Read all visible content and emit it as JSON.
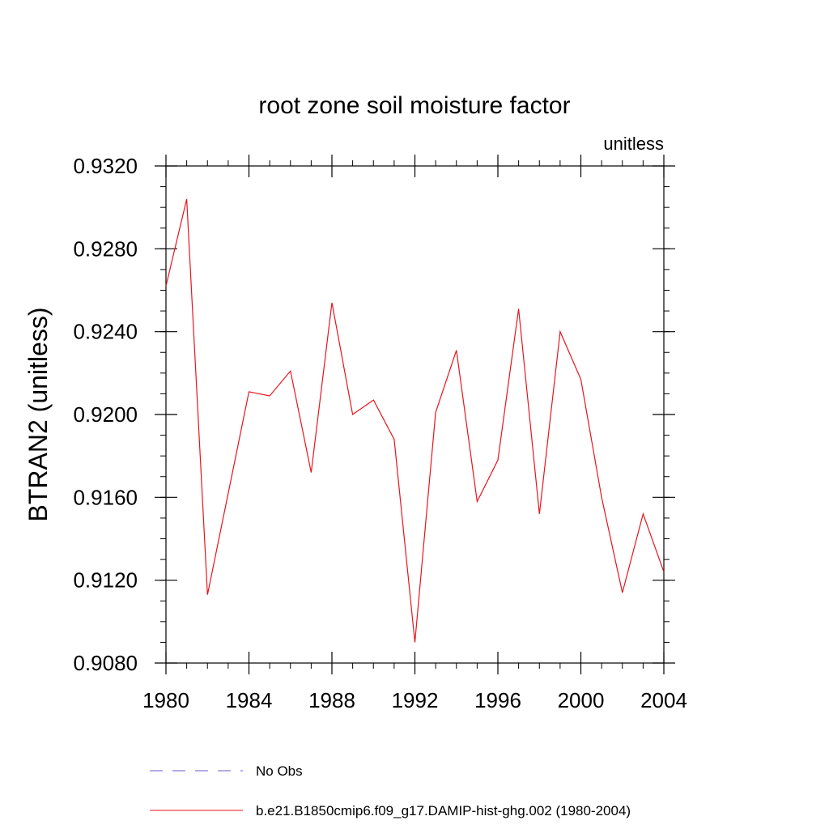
{
  "chart_data": {
    "type": "line",
    "title": "root zone soil moisture factor",
    "units_label": "unitless",
    "ylabel": "BTRAN2  (unitless)",
    "xlabel": "",
    "xlim": [
      1980,
      2004
    ],
    "ylim": [
      0.908,
      0.932
    ],
    "x_ticks": [
      1980,
      1984,
      1988,
      1992,
      1996,
      2000,
      2004
    ],
    "y_ticks": [
      "0.9080",
      "0.9120",
      "0.9160",
      "0.9200",
      "0.9240",
      "0.9280",
      "0.9320"
    ],
    "x_minor_step": 1,
    "y_minor_step": 0.001,
    "grid": false,
    "series": [
      {
        "name": "b.e21.B1850cmip6.f09_g17.DAMIP-hist-ghg.002 (1980-2004)",
        "color": "#e8141c",
        "dash": "solid",
        "x": [
          1980,
          1981,
          1982,
          1983,
          1984,
          1985,
          1986,
          1987,
          1988,
          1989,
          1990,
          1991,
          1992,
          1993,
          1994,
          1995,
          1996,
          1997,
          1998,
          1999,
          2000,
          2001,
          2002,
          2003,
          2004
        ],
        "y": [
          0.9262,
          0.9304,
          0.9113,
          0.9162,
          0.9211,
          0.9209,
          0.9221,
          0.9172,
          0.9254,
          0.92,
          0.9207,
          0.9188,
          0.909,
          0.9201,
          0.9231,
          0.9158,
          0.9178,
          0.9251,
          0.9152,
          0.924,
          0.9217,
          0.916,
          0.9114,
          0.9152,
          0.9124
        ]
      }
    ],
    "legend": {
      "position": "bottom",
      "entries": [
        {
          "label": "No Obs",
          "color": "#6a5acd",
          "dash": "dashed"
        },
        {
          "label": "b.e21.B1850cmip6.f09_g17.DAMIP-hist-ghg.002 (1980-2004)",
          "color": "#e8141c",
          "dash": "solid"
        }
      ]
    }
  }
}
